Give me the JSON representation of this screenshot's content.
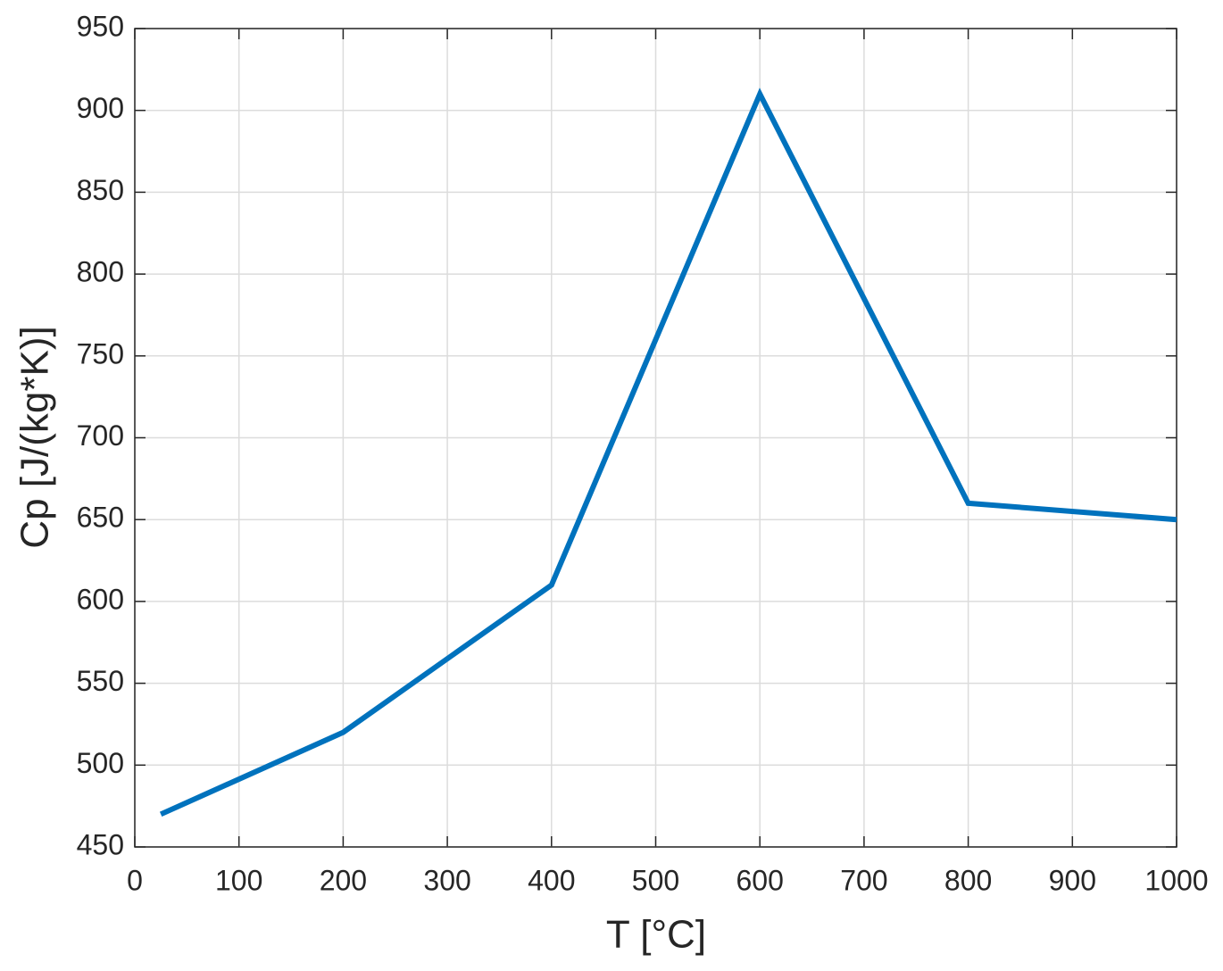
{
  "chart_data": {
    "type": "line",
    "x": [
      25,
      200,
      400,
      600,
      800,
      1000
    ],
    "values": [
      470,
      520,
      610,
      910,
      660,
      650
    ],
    "color": "#0072bd",
    "x_label": "T [°C]",
    "y_label": "Cp [J/(kg*K)]",
    "xlim": [
      0,
      1000
    ],
    "xticks": [
      0,
      100,
      200,
      300,
      400,
      500,
      600,
      700,
      800,
      900,
      1000
    ],
    "ylim": [
      450,
      950
    ],
    "yticks": [
      450,
      500,
      550,
      600,
      650,
      700,
      750,
      800,
      850,
      900,
      950
    ],
    "grid": true
  }
}
